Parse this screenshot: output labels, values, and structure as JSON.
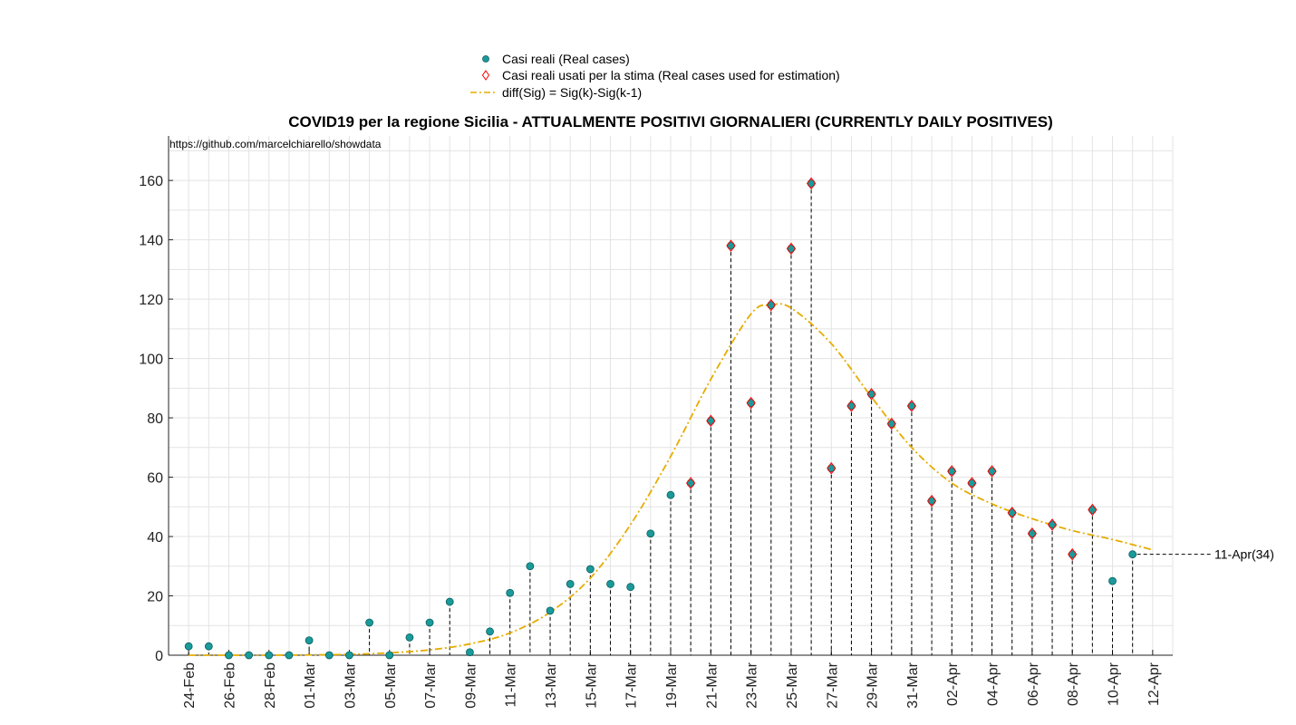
{
  "chart_data": {
    "type": "scatter",
    "title": "COVID19 per la regione Sicilia - ATTUALMENTE POSITIVI GIORNALIERI (CURRENTLY DAILY POSITIVES)",
    "watermark": "https://github.com/marcelchiarello/showdata",
    "xlabel": "",
    "ylabel": "",
    "ylim": [
      0,
      175
    ],
    "yticks": [
      0,
      20,
      40,
      60,
      80,
      100,
      120,
      140,
      160
    ],
    "xlim": [
      "2020-02-23",
      "2020-04-13"
    ],
    "xtick_labels": [
      "24-Feb",
      "26-Feb",
      "28-Feb",
      "01-Mar",
      "03-Mar",
      "05-Mar",
      "07-Mar",
      "09-Mar",
      "11-Mar",
      "13-Mar",
      "15-Mar",
      "17-Mar",
      "19-Mar",
      "21-Mar",
      "23-Mar",
      "25-Mar",
      "27-Mar",
      "29-Mar",
      "31-Mar",
      "02-Apr",
      "04-Apr",
      "06-Apr",
      "08-Apr",
      "10-Apr",
      "12-Apr"
    ],
    "grid": true,
    "legend_position": "top-center",
    "series": [
      {
        "name": "Casi reali (Real cases)",
        "marker": "circle",
        "color": "#1a9a9a",
        "x": [
          "24-Feb",
          "25-Feb",
          "26-Feb",
          "27-Feb",
          "28-Feb",
          "29-Feb",
          "01-Mar",
          "02-Mar",
          "03-Mar",
          "04-Mar",
          "05-Mar",
          "06-Mar",
          "07-Mar",
          "08-Mar",
          "09-Mar",
          "10-Mar",
          "11-Mar",
          "12-Mar",
          "13-Mar",
          "14-Mar",
          "15-Mar",
          "16-Mar",
          "17-Mar",
          "18-Mar",
          "19-Mar",
          "20-Mar",
          "21-Mar",
          "22-Mar",
          "23-Mar",
          "24-Mar",
          "25-Mar",
          "26-Mar",
          "27-Mar",
          "28-Mar",
          "29-Mar",
          "30-Mar",
          "31-Mar",
          "01-Apr",
          "02-Apr",
          "03-Apr",
          "04-Apr",
          "05-Apr",
          "06-Apr",
          "07-Apr",
          "08-Apr",
          "09-Apr",
          "10-Apr",
          "11-Apr"
        ],
        "values": [
          3,
          3,
          0,
          0,
          0,
          0,
          5,
          0,
          0,
          11,
          0,
          6,
          11,
          18,
          1,
          8,
          21,
          30,
          15,
          24,
          29,
          24,
          23,
          41,
          54,
          58,
          79,
          138,
          85,
          118,
          137,
          159,
          63,
          84,
          88,
          78,
          84,
          52,
          62,
          58,
          62,
          48,
          41,
          44,
          34,
          49,
          25,
          34
        ]
      },
      {
        "name": "Casi reali usati per la stima (Real cases used for estimation)",
        "marker": "diamond",
        "color": "#ff0000",
        "x": [
          "20-Mar",
          "21-Mar",
          "22-Mar",
          "23-Mar",
          "24-Mar",
          "25-Mar",
          "26-Mar",
          "27-Mar",
          "28-Mar",
          "29-Mar",
          "30-Mar",
          "31-Mar",
          "01-Apr",
          "02-Apr",
          "03-Apr",
          "04-Apr",
          "05-Apr",
          "06-Apr",
          "07-Apr",
          "08-Apr",
          "09-Apr"
        ],
        "values": [
          58,
          79,
          138,
          85,
          118,
          137,
          159,
          63,
          84,
          88,
          78,
          84,
          52,
          62,
          58,
          62,
          48,
          41,
          44,
          34,
          49
        ]
      },
      {
        "name": "diff(Sig) = Sig(k)-Sig(k-1)",
        "line": "dash-dot",
        "color": "#e6ac00",
        "x": [
          "24-Feb",
          "26-Feb",
          "28-Feb",
          "01-Mar",
          "03-Mar",
          "05-Mar",
          "07-Mar",
          "09-Mar",
          "11-Mar",
          "13-Mar",
          "15-Mar",
          "17-Mar",
          "19-Mar",
          "21-Mar",
          "23-Mar",
          "24-Mar",
          "25-Mar",
          "27-Mar",
          "29-Mar",
          "31-Mar",
          "02-Apr",
          "04-Apr",
          "06-Apr",
          "08-Apr",
          "10-Apr",
          "12-Apr"
        ],
        "values": [
          0,
          0,
          0,
          0.1,
          0.3,
          0.8,
          1.8,
          3.8,
          7.5,
          14.5,
          26,
          44,
          67,
          93,
          115,
          118,
          117,
          105,
          87,
          70,
          58,
          51,
          46,
          42,
          39,
          35.5
        ]
      }
    ],
    "annotation": {
      "label": "11-Apr(34)",
      "x": "11-Apr",
      "y": 34
    }
  },
  "colors": {
    "real": "#1a9a9a",
    "estimation_marker": "#ff0000",
    "fit_line": "#e6ac00",
    "grid": "#e3e3e3"
  }
}
